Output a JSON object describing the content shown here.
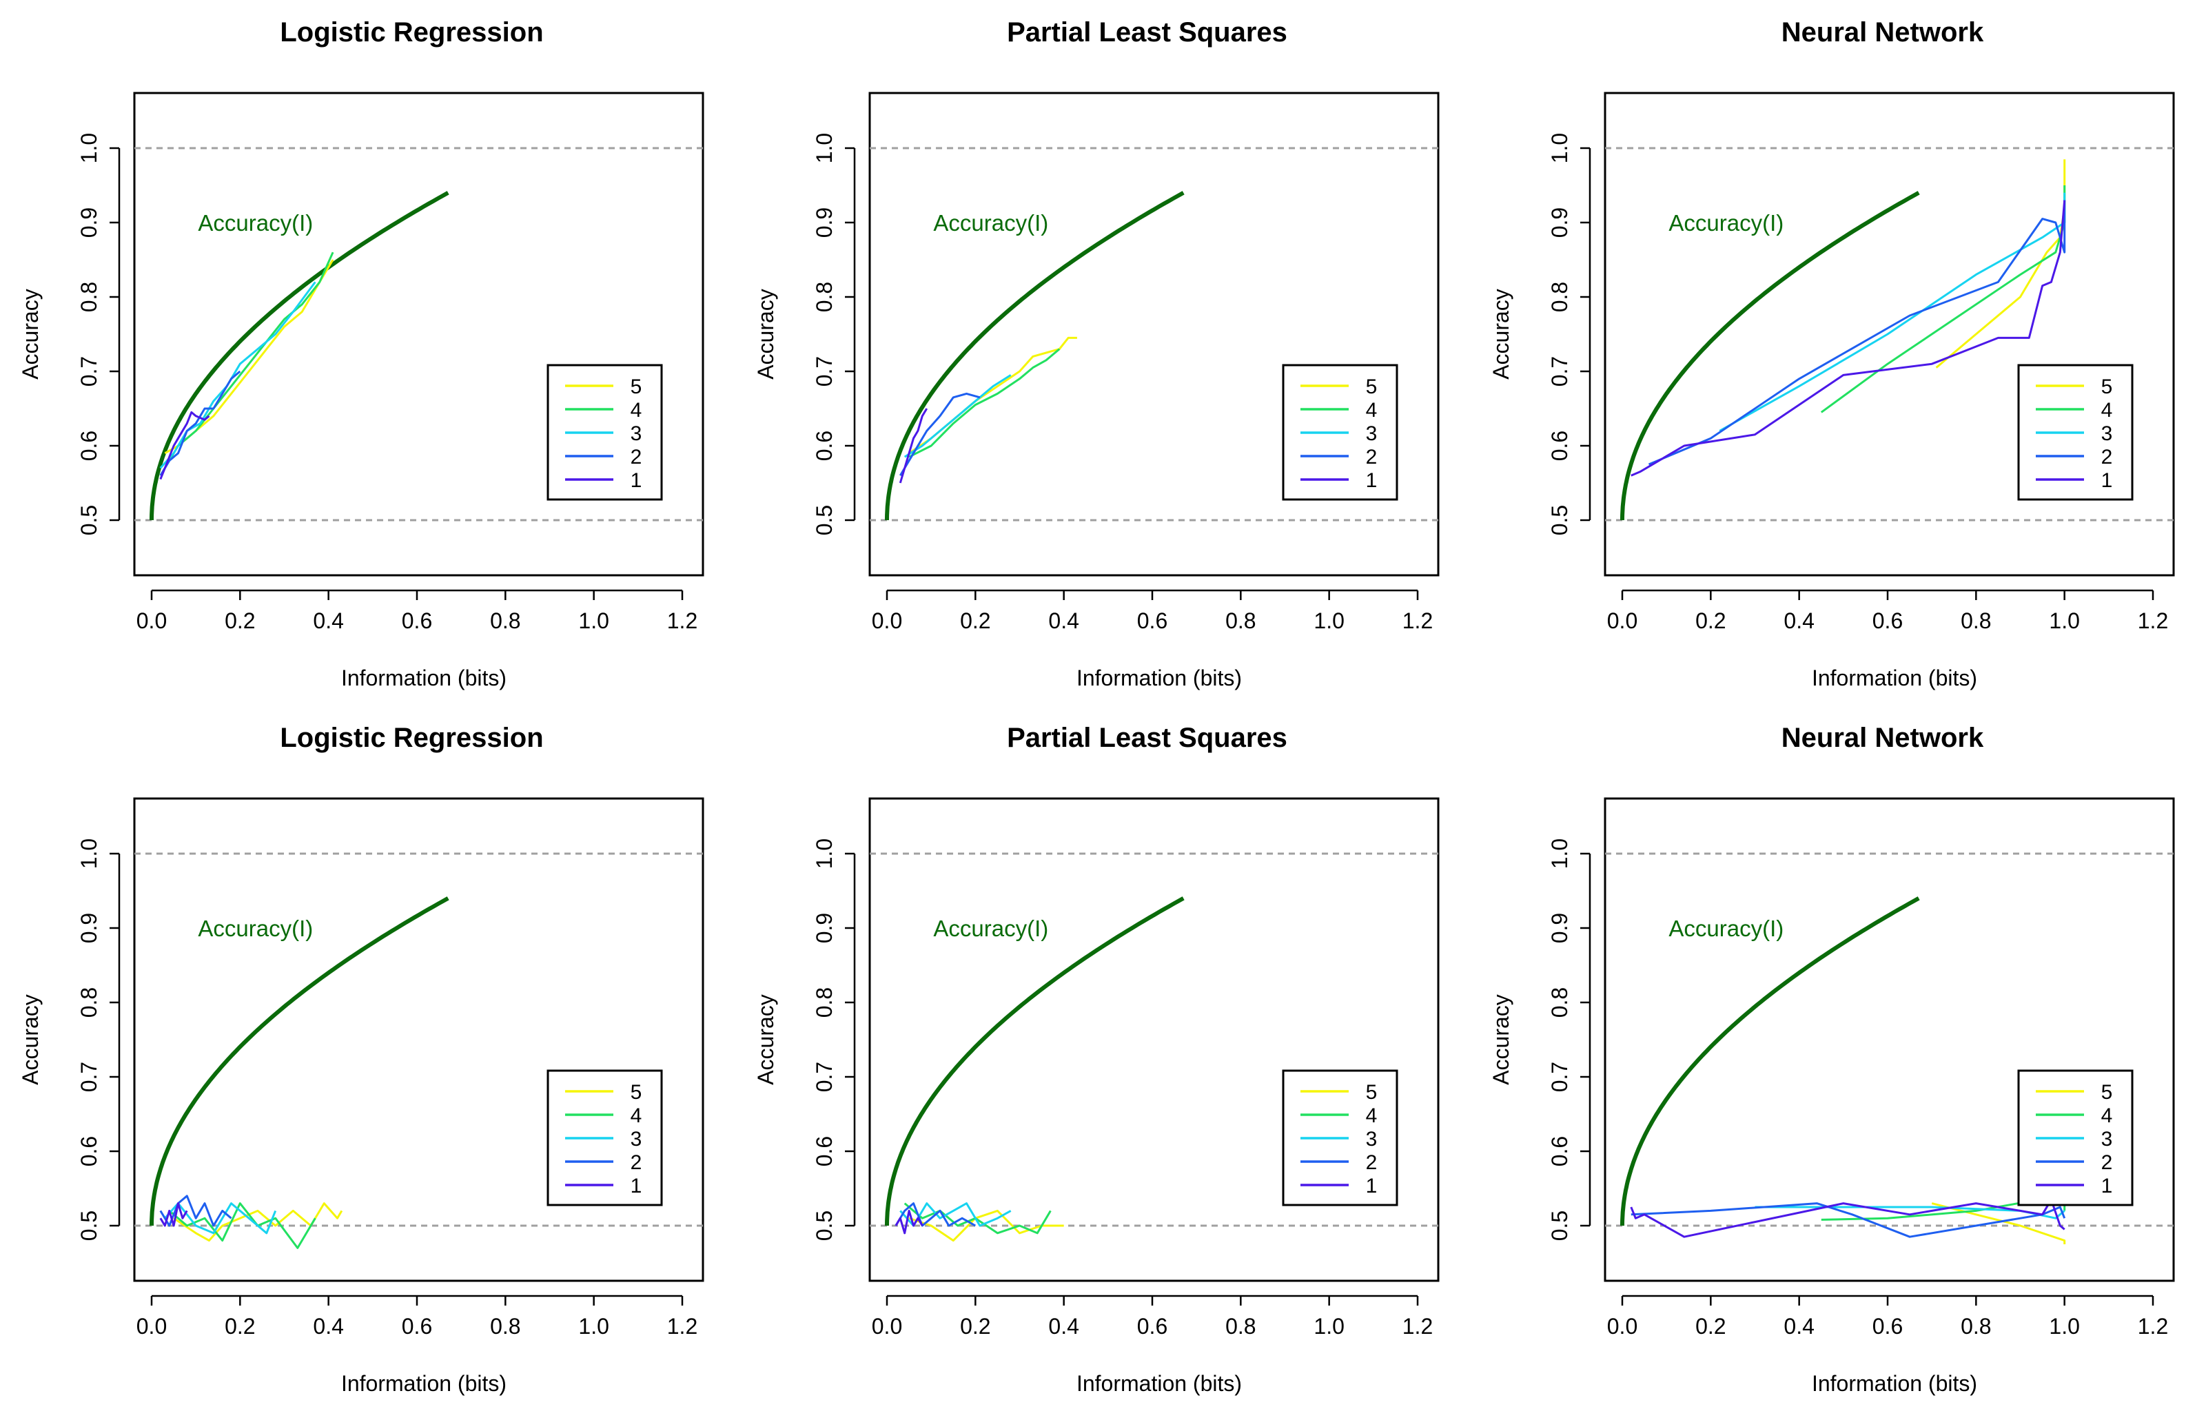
{
  "colors": {
    "curve": "#0a6b0a",
    "dashed": "#a0a0a0",
    "s5": "#f5f50a",
    "s4": "#22e060",
    "s3": "#17d3f0",
    "s2": "#1e5ff0",
    "s1": "#4b18e8"
  },
  "legend_labels": [
    "5",
    "4",
    "3",
    "2",
    "1"
  ],
  "chart_data": [
    {
      "type": "line",
      "title": "Logistic Regression",
      "xlabel": "Information (bits)",
      "ylabel": "Accuracy",
      "xlim": [
        0.0,
        1.2
      ],
      "ylim": [
        0.5,
        1.0
      ],
      "xticks": [
        "0.0",
        "0.2",
        "0.4",
        "0.6",
        "0.8",
        "1.0",
        "1.2"
      ],
      "yticks": [
        "0.5",
        "0.6",
        "0.7",
        "0.8",
        "0.9",
        "1.0"
      ],
      "reference_lines": [
        0.5,
        1.0
      ],
      "annotation": "Accuracy(I)",
      "legend": "right",
      "series": [
        {
          "name": "5",
          "x": [
            0.03,
            0.06,
            0.1,
            0.14,
            0.18,
            0.22,
            0.26,
            0.3,
            0.34,
            0.38,
            0.41
          ],
          "y": [
            0.59,
            0.6,
            0.62,
            0.64,
            0.67,
            0.7,
            0.73,
            0.76,
            0.78,
            0.82,
            0.85
          ]
        },
        {
          "name": "4",
          "x": [
            0.03,
            0.06,
            0.1,
            0.14,
            0.18,
            0.22,
            0.26,
            0.3,
            0.34,
            0.38,
            0.41
          ],
          "y": [
            0.57,
            0.6,
            0.62,
            0.65,
            0.68,
            0.71,
            0.74,
            0.77,
            0.79,
            0.82,
            0.86
          ]
        },
        {
          "name": "3",
          "x": [
            0.02,
            0.05,
            0.08,
            0.11,
            0.14,
            0.17,
            0.2,
            0.24,
            0.28,
            0.32,
            0.37
          ],
          "y": [
            0.57,
            0.59,
            0.62,
            0.63,
            0.66,
            0.68,
            0.71,
            0.73,
            0.75,
            0.78,
            0.82
          ]
        },
        {
          "name": "2",
          "x": [
            0.02,
            0.04,
            0.06,
            0.08,
            0.1,
            0.12,
            0.14,
            0.16,
            0.18,
            0.2
          ],
          "y": [
            0.56,
            0.58,
            0.59,
            0.62,
            0.63,
            0.65,
            0.65,
            0.67,
            0.69,
            0.7
          ]
        },
        {
          "name": "1",
          "x": [
            0.02,
            0.03,
            0.05,
            0.06,
            0.08,
            0.09,
            0.1,
            0.12,
            0.13
          ],
          "y": [
            0.555,
            0.57,
            0.6,
            0.61,
            0.63,
            0.645,
            0.64,
            0.635,
            0.64
          ]
        }
      ]
    },
    {
      "type": "line",
      "title": "Partial Least Squares",
      "xlabel": "Information (bits)",
      "ylabel": "Accuracy",
      "xlim": [
        0.0,
        1.2
      ],
      "ylim": [
        0.5,
        1.0
      ],
      "xticks": [
        "0.0",
        "0.2",
        "0.4",
        "0.6",
        "0.8",
        "1.0",
        "1.2"
      ],
      "yticks": [
        "0.5",
        "0.6",
        "0.7",
        "0.8",
        "0.9",
        "1.0"
      ],
      "reference_lines": [
        0.5,
        1.0
      ],
      "annotation": "Accuracy(I)",
      "legend": "right",
      "series": [
        {
          "name": "5",
          "x": [
            0.05,
            0.1,
            0.15,
            0.2,
            0.25,
            0.3,
            0.33,
            0.36,
            0.39,
            0.41,
            0.43
          ],
          "y": [
            0.59,
            0.61,
            0.635,
            0.66,
            0.68,
            0.7,
            0.72,
            0.725,
            0.73,
            0.745,
            0.745
          ]
        },
        {
          "name": "4",
          "x": [
            0.05,
            0.1,
            0.15,
            0.2,
            0.25,
            0.3,
            0.33,
            0.36,
            0.39
          ],
          "y": [
            0.585,
            0.6,
            0.63,
            0.655,
            0.67,
            0.69,
            0.705,
            0.715,
            0.73
          ]
        },
        {
          "name": "3",
          "x": [
            0.04,
            0.08,
            0.12,
            0.16,
            0.2,
            0.24,
            0.28
          ],
          "y": [
            0.585,
            0.6,
            0.62,
            0.64,
            0.66,
            0.68,
            0.695
          ]
        },
        {
          "name": "2",
          "x": [
            0.03,
            0.06,
            0.09,
            0.12,
            0.15,
            0.18,
            0.21
          ],
          "y": [
            0.56,
            0.59,
            0.62,
            0.64,
            0.665,
            0.67,
            0.665
          ]
        },
        {
          "name": "1",
          "x": [
            0.03,
            0.05,
            0.06,
            0.07,
            0.08,
            0.09
          ],
          "y": [
            0.55,
            0.59,
            0.61,
            0.62,
            0.64,
            0.65
          ]
        }
      ]
    },
    {
      "type": "line",
      "title": "Neural Network",
      "xlabel": "Information (bits)",
      "ylabel": "Accuracy",
      "xlim": [
        0.0,
        1.2
      ],
      "ylim": [
        0.5,
        1.0
      ],
      "xticks": [
        "0.0",
        "0.2",
        "0.4",
        "0.6",
        "0.8",
        "1.0",
        "1.2"
      ],
      "yticks": [
        "0.5",
        "0.6",
        "0.7",
        "0.8",
        "0.9",
        "1.0"
      ],
      "reference_lines": [
        0.5,
        1.0
      ],
      "annotation": "Accuracy(I)",
      "legend": "right",
      "series": [
        {
          "name": "5",
          "x": [
            0.71,
            0.8,
            0.9,
            0.96,
            0.99,
            1.0,
            1.0
          ],
          "y": [
            0.705,
            0.75,
            0.8,
            0.86,
            0.88,
            0.92,
            0.985
          ]
        },
        {
          "name": "4",
          "x": [
            0.45,
            0.6,
            0.75,
            0.9,
            0.98,
            1.0,
            1.0
          ],
          "y": [
            0.645,
            0.71,
            0.77,
            0.83,
            0.86,
            0.9,
            0.95
          ]
        },
        {
          "name": "3",
          "x": [
            0.22,
            0.4,
            0.6,
            0.8,
            0.95,
            1.0,
            1.0
          ],
          "y": [
            0.62,
            0.68,
            0.75,
            0.83,
            0.88,
            0.9,
            0.94
          ]
        },
        {
          "name": "2",
          "x": [
            0.06,
            0.2,
            0.4,
            0.65,
            0.85,
            0.95,
            0.98,
            1.0,
            1.0
          ],
          "y": [
            0.575,
            0.61,
            0.69,
            0.775,
            0.82,
            0.905,
            0.9,
            0.86,
            0.93
          ]
        },
        {
          "name": "1",
          "x": [
            0.02,
            0.04,
            0.14,
            0.3,
            0.5,
            0.7,
            0.85,
            0.92,
            0.95,
            0.97,
            0.99,
            1.0
          ],
          "y": [
            0.56,
            0.565,
            0.6,
            0.615,
            0.695,
            0.71,
            0.745,
            0.745,
            0.815,
            0.82,
            0.86,
            0.93
          ]
        }
      ]
    },
    {
      "type": "line",
      "title": "Logistic Regression",
      "xlabel": "Information (bits)",
      "ylabel": "Accuracy",
      "xlim": [
        0.0,
        1.2
      ],
      "ylim": [
        0.5,
        1.0
      ],
      "xticks": [
        "0.0",
        "0.2",
        "0.4",
        "0.6",
        "0.8",
        "1.0",
        "1.2"
      ],
      "yticks": [
        "0.5",
        "0.6",
        "0.7",
        "0.8",
        "0.9",
        "1.0"
      ],
      "reference_lines": [
        0.5,
        1.0
      ],
      "annotation": "Accuracy(I)",
      "legend": "right",
      "series": [
        {
          "name": "5",
          "x": [
            0.05,
            0.1,
            0.13,
            0.16,
            0.2,
            0.24,
            0.28,
            0.32,
            0.36,
            0.39,
            0.42,
            0.43
          ],
          "y": [
            0.51,
            0.49,
            0.48,
            0.5,
            0.51,
            0.52,
            0.5,
            0.52,
            0.5,
            0.53,
            0.51,
            0.52
          ]
        },
        {
          "name": "4",
          "x": [
            0.04,
            0.08,
            0.12,
            0.16,
            0.2,
            0.24,
            0.28,
            0.33,
            0.37
          ],
          "y": [
            0.52,
            0.5,
            0.51,
            0.48,
            0.53,
            0.5,
            0.51,
            0.47,
            0.51
          ]
        },
        {
          "name": "3",
          "x": [
            0.03,
            0.06,
            0.1,
            0.14,
            0.18,
            0.22,
            0.26,
            0.28
          ],
          "y": [
            0.51,
            0.53,
            0.5,
            0.49,
            0.53,
            0.51,
            0.49,
            0.52
          ]
        },
        {
          "name": "2",
          "x": [
            0.02,
            0.04,
            0.06,
            0.08,
            0.1,
            0.12,
            0.14,
            0.16,
            0.18
          ],
          "y": [
            0.52,
            0.5,
            0.53,
            0.54,
            0.51,
            0.53,
            0.5,
            0.52,
            0.51
          ]
        },
        {
          "name": "1",
          "x": [
            0.02,
            0.03,
            0.04,
            0.05,
            0.06,
            0.07,
            0.08
          ],
          "y": [
            0.51,
            0.5,
            0.52,
            0.5,
            0.53,
            0.51,
            0.52
          ]
        }
      ]
    },
    {
      "type": "line",
      "title": "Partial Least Squares",
      "xlabel": "Information (bits)",
      "ylabel": "Accuracy",
      "xlim": [
        0.0,
        1.2
      ],
      "ylim": [
        0.5,
        1.0
      ],
      "xticks": [
        "0.0",
        "0.2",
        "0.4",
        "0.6",
        "0.8",
        "1.0",
        "1.2"
      ],
      "yticks": [
        "0.5",
        "0.6",
        "0.7",
        "0.8",
        "0.9",
        "1.0"
      ],
      "reference_lines": [
        0.5,
        1.0
      ],
      "annotation": "Accuracy(I)",
      "legend": "right",
      "series": [
        {
          "name": "5",
          "x": [
            0.05,
            0.1,
            0.15,
            0.2,
            0.25,
            0.3,
            0.35,
            0.4
          ],
          "y": [
            0.51,
            0.5,
            0.48,
            0.51,
            0.52,
            0.49,
            0.5,
            0.5
          ]
        },
        {
          "name": "4",
          "x": [
            0.04,
            0.08,
            0.12,
            0.16,
            0.2,
            0.25,
            0.3,
            0.34,
            0.37
          ],
          "y": [
            0.53,
            0.51,
            0.52,
            0.5,
            0.51,
            0.49,
            0.5,
            0.49,
            0.52
          ]
        },
        {
          "name": "3",
          "x": [
            0.03,
            0.06,
            0.09,
            0.12,
            0.15,
            0.18,
            0.21,
            0.25,
            0.28
          ],
          "y": [
            0.52,
            0.5,
            0.53,
            0.51,
            0.52,
            0.53,
            0.5,
            0.51,
            0.52
          ]
        },
        {
          "name": "2",
          "x": [
            0.02,
            0.04,
            0.06,
            0.08,
            0.1,
            0.12,
            0.14,
            0.17,
            0.2
          ],
          "y": [
            0.5,
            0.52,
            0.53,
            0.5,
            0.51,
            0.52,
            0.5,
            0.51,
            0.5
          ]
        },
        {
          "name": "1",
          "x": [
            0.02,
            0.03,
            0.04,
            0.05,
            0.06,
            0.07,
            0.08
          ],
          "y": [
            0.5,
            0.51,
            0.49,
            0.52,
            0.5,
            0.51,
            0.5
          ]
        }
      ]
    },
    {
      "type": "line",
      "title": "Neural Network",
      "xlabel": "Information (bits)",
      "ylabel": "Accuracy",
      "xlim": [
        0.0,
        1.2
      ],
      "ylim": [
        0.5,
        1.0
      ],
      "xticks": [
        "0.0",
        "0.2",
        "0.4",
        "0.6",
        "0.8",
        "1.0",
        "1.2"
      ],
      "yticks": [
        "0.5",
        "0.6",
        "0.7",
        "0.8",
        "0.9",
        "1.0"
      ],
      "reference_lines": [
        0.5,
        1.0
      ],
      "annotation": "Accuracy(I)",
      "legend": "right",
      "series": [
        {
          "name": "5",
          "x": [
            0.7,
            0.8,
            0.9,
            1.0,
            1.0
          ],
          "y": [
            0.53,
            0.515,
            0.5,
            0.48,
            0.475
          ]
        },
        {
          "name": "4",
          "x": [
            0.45,
            0.6,
            0.8,
            0.99,
            1.0,
            1.0
          ],
          "y": [
            0.508,
            0.51,
            0.52,
            0.54,
            0.575,
            0.52
          ]
        },
        {
          "name": "3",
          "x": [
            0.3,
            0.5,
            0.7,
            0.9,
            0.98,
            1.0
          ],
          "y": [
            0.525,
            0.525,
            0.525,
            0.52,
            0.51,
            0.52
          ]
        },
        {
          "name": "2",
          "x": [
            0.02,
            0.2,
            0.44,
            0.52,
            0.65,
            0.8,
            0.95,
            0.99,
            1.0
          ],
          "y": [
            0.515,
            0.52,
            0.53,
            0.515,
            0.485,
            0.5,
            0.515,
            0.525,
            0.51
          ]
        },
        {
          "name": "1",
          "x": [
            0.02,
            0.03,
            0.05,
            0.14,
            0.3,
            0.5,
            0.65,
            0.8,
            0.95,
            0.97,
            0.99,
            1.0
          ],
          "y": [
            0.525,
            0.51,
            0.515,
            0.485,
            0.505,
            0.53,
            0.515,
            0.53,
            0.515,
            0.535,
            0.5,
            0.495
          ]
        }
      ]
    }
  ]
}
